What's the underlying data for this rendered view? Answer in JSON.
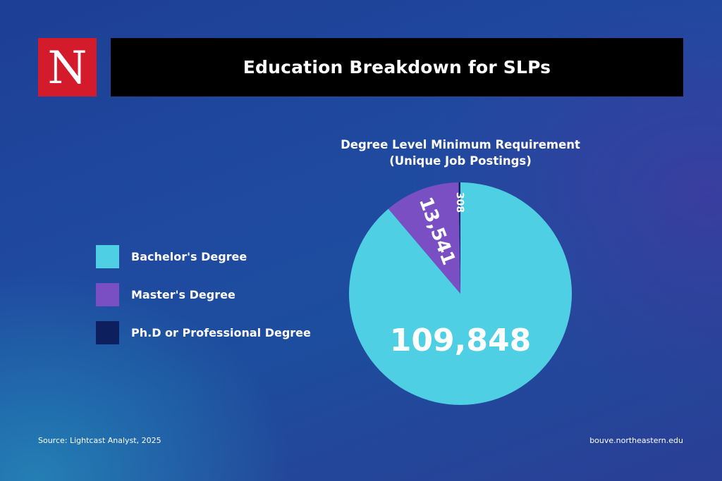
{
  "logo": {
    "letter": "N"
  },
  "header": {
    "title": "Education Breakdown for SLPs"
  },
  "chart_data": {
    "type": "pie",
    "title_lines": [
      "Degree Level Minimum Requirement",
      "(Unique Job Postings)"
    ],
    "categories": [
      "Bachelor's Degree",
      "Master's Degree",
      "Ph.D or Professional Degree"
    ],
    "values": [
      109848,
      13541,
      308
    ],
    "value_labels": [
      "109,848",
      "13,541",
      "308"
    ],
    "colors": [
      "#4fcfe4",
      "#7b4fc4",
      "#0d1f5c"
    ],
    "legend_position": "left"
  },
  "footer": {
    "source": "Source: Lightcast Analyst, 2025",
    "site": "bouve.northeastern.edu"
  }
}
